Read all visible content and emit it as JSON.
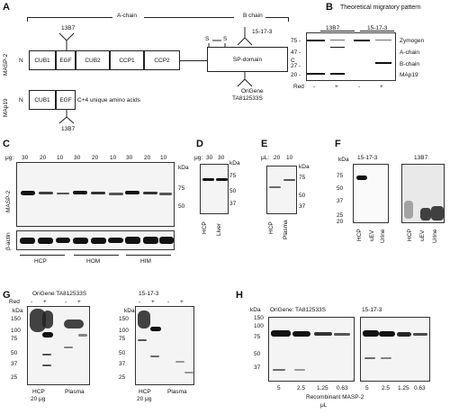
{
  "panels": {
    "A": {
      "label": "A",
      "a_chain": "A-chain",
      "b_chain": "B chain",
      "masp2_label": "MASP-2",
      "map19_label": "MAp19",
      "n_term": "N",
      "c_term": "C",
      "domains": [
        "CUB1",
        "EGF",
        "CUB2",
        "CCP1",
        "CCP2"
      ],
      "sp_domain": "SP-domain",
      "ss_label_1": "S",
      "ss_label_2": "S",
      "ab_13b7_top": "13B7",
      "ab_15173": "15-17-3",
      "origene_1": "OriGene",
      "origene_2": "TA812533S",
      "map19_domains": [
        "CUB1",
        "EGF"
      ],
      "map19_unique": "C+4 unique amino acids",
      "ab_13b7_bottom": "13B7"
    },
    "B": {
      "label": "B",
      "title": "Theoretical migratory pattern",
      "col_13b7": "13B7",
      "col_15173": "15-17-3",
      "mw_marks": [
        "75 -",
        "47 -",
        "27 -",
        "20 -"
      ],
      "band_labels": [
        "Zymogen",
        "A-chain",
        "B-chain",
        "MAp19"
      ],
      "red_label": "Red",
      "red_signs": [
        "-",
        "+",
        "-",
        "+"
      ]
    },
    "C": {
      "label": "C",
      "ug_label": "μg:",
      "loads": [
        "30",
        "20",
        "10",
        "30",
        "20",
        "10",
        "30",
        "20",
        "10"
      ],
      "kda": "kDa",
      "mw": [
        "75",
        "50"
      ],
      "blot_label": "MASP-2",
      "actin_label": "β-actin",
      "groups": [
        "HCP",
        "HOM",
        "HIM"
      ]
    },
    "D": {
      "label": "D",
      "ug_label": "μg:",
      "loads": [
        "30",
        "30"
      ],
      "kda": "kDa",
      "mw": [
        "75",
        "50",
        "37"
      ],
      "lanes": [
        "HCP",
        "Liver"
      ]
    },
    "E": {
      "label": "E",
      "ul_label": "μL:",
      "loads": [
        "20",
        "10"
      ],
      "kda": "kDa",
      "mw": [
        "75",
        "50",
        "37"
      ],
      "lanes": [
        "HCP",
        "Plasma"
      ]
    },
    "F": {
      "label": "F",
      "kda": "kDa",
      "ab1": "15-17-3",
      "ab2": "13B7",
      "mw": [
        "75",
        "50",
        "37",
        "25",
        "20"
      ],
      "lanes1": [
        "HCP",
        "uEV",
        "Urine"
      ],
      "lanes2": [
        "HCP",
        "uEV",
        "Urine"
      ]
    },
    "G": {
      "label": "G",
      "title1": "OriGene TA812533S",
      "title2": "15-17-3",
      "red": "Red",
      "signs1": [
        "-",
        "+",
        "-",
        "+"
      ],
      "signs2": [
        "-",
        "+",
        "-",
        "+"
      ],
      "kda": "kDa",
      "mw1": [
        "150",
        "100",
        "75",
        "50",
        "37",
        "25"
      ],
      "mw2": [
        "150",
        "100",
        "75",
        "50",
        "37",
        "25"
      ],
      "lanes1a": "HCP",
      "lanes1b": "Plasma",
      "lanes1c": "20 μg",
      "lanes2a": "HCP",
      "lanes2b": "Plasma",
      "lanes2c": "20 μg"
    },
    "H": {
      "label": "H",
      "kda": "kDa",
      "title1": "OriGene: TA812533S",
      "title2": "15-17-3",
      "mw": [
        "150",
        "100",
        "75",
        "50",
        "37"
      ],
      "loads1": [
        "5",
        "2.5",
        "1.25",
        "0.63"
      ],
      "loads2": [
        "5",
        "2.5",
        "1.25",
        "0.63"
      ],
      "caption": "Recombinant MASP-2",
      "unit": "μL"
    }
  }
}
